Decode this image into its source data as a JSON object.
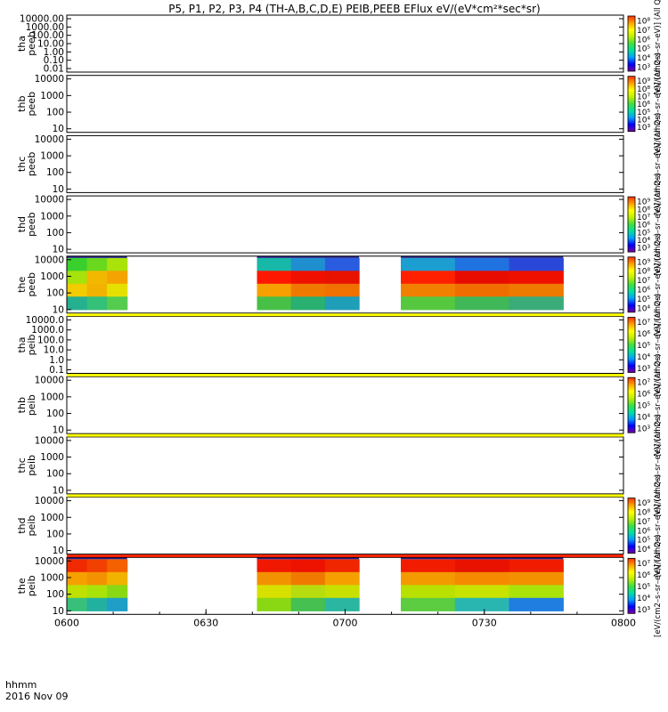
{
  "title": "P5, P1, P2, P3, P4 (TH-A,B,C,D,E) PEIB,PEEB EFlux eV/(eV*cm²*sec*sr)",
  "footer": {
    "label_line1": "hhmm",
    "label_line2": "2016 Nov 09"
  },
  "chart_data": {
    "type": "heatmap",
    "x_ticks": [
      "0600",
      "0630",
      "0700",
      "0730",
      "0800"
    ],
    "x_range": [
      "06:00",
      "08:00"
    ],
    "panels": [
      {
        "probe": "tha",
        "product": "peeb",
        "yticks": [
          "10000.00",
          "1000.00",
          "100.00",
          "10.00",
          "1.00",
          "0.10",
          "0.01"
        ],
        "cbar_ticks": [
          "10⁸",
          "10⁷",
          "10⁶",
          "10⁵",
          "10⁴",
          "10³"
        ],
        "cbar_label": "[eV/(cm2–s–sr–eV)] (All Qs)",
        "data": []
      },
      {
        "probe": "thb",
        "product": "peeb",
        "yticks": [
          "10000",
          "1000",
          "100",
          "10"
        ],
        "cbar_ticks": [
          "10⁹",
          "10⁸",
          "10⁷",
          "10⁶",
          "10⁵",
          "10⁴",
          "10³"
        ],
        "cbar_label": "[eV/(cm2–s–sr–eV)] (All Qs)",
        "data": []
      },
      {
        "probe": "thc",
        "product": "peeb",
        "yticks": [
          "10000",
          "1000",
          "100",
          "10"
        ],
        "cbar_ticks": [],
        "cbar_label": "[eV/(cm2–s–sr–eV)] (All Qs)",
        "data": []
      },
      {
        "probe": "thd",
        "product": "peeb",
        "yticks": [
          "10000",
          "1000",
          "100",
          "10"
        ],
        "cbar_ticks": [
          "10⁹",
          "10⁸",
          "10⁷",
          "10⁶",
          "10⁵",
          "10⁴",
          "10³"
        ],
        "cbar_label": "[eV/(cm2–s–sr–eV)] (All Qs)",
        "data": []
      },
      {
        "probe": "the",
        "product": "peeb",
        "yticks": [
          "10000",
          "1000",
          "100",
          "10"
        ],
        "cbar_ticks": [
          "10⁹",
          "10⁸",
          "10⁷",
          "10⁶",
          "10⁵",
          "10⁴"
        ],
        "cbar_label": "[eV/(cm2–s–sr–eV)] (All Qs)",
        "data": [
          {
            "start": "06:00",
            "end": "06:13",
            "rows": [
              [
                "#39d02e",
                "#6ad81c",
                "#a9e30a"
              ],
              [
                "#a6e20c",
                "#f2b800",
                "#f5a300"
              ],
              [
                "#f0cc00",
                "#f2b200",
                "#e6e000"
              ],
              [
                "#25b090",
                "#33c078",
                "#55cc50"
              ]
            ]
          },
          {
            "start": "06:41",
            "end": "07:03",
            "rows": [
              [
                "#18b8a8",
                "#1f8fd0",
                "#2a5ce0"
              ],
              [
                "#ff1800",
                "#f01000",
                "#e81200"
              ],
              [
                "#f6a000",
                "#f07a00",
                "#f07000"
              ],
              [
                "#48c048",
                "#2ab070",
                "#1f9eb8"
              ]
            ]
          },
          {
            "start": "07:12",
            "end": "07:47",
            "rows": [
              [
                "#1c9ed0",
                "#2072e0",
                "#2a48d8"
              ],
              [
                "#ff2000",
                "#e80c00",
                "#f01000"
              ],
              [
                "#f28000",
                "#f06e00",
                "#ee7a00"
              ],
              [
                "#56c840",
                "#40b858",
                "#3aac7a"
              ]
            ]
          }
        ]
      },
      {
        "probe": "tha",
        "product": "peib",
        "yticks": [
          "10000.0",
          "1000.0",
          "100.0",
          "10.0",
          "1.0",
          "0.1"
        ],
        "cbar_ticks": [
          "10⁷",
          "10⁶",
          "10⁵",
          "10⁴",
          "10³"
        ],
        "cbar_label": "[eV/(cm2–s–sr–eV)] (All Qs)",
        "data": []
      },
      {
        "probe": "thb",
        "product": "peib",
        "yticks": [
          "10000",
          "1000",
          "100",
          "10"
        ],
        "cbar_ticks": [
          "10⁷",
          "10⁶",
          "10⁵",
          "10⁴",
          "10³"
        ],
        "cbar_label": "[eV/(cm2–s–sr–eV)] (All Qs)",
        "data": []
      },
      {
        "probe": "thc",
        "product": "peib",
        "yticks": [
          "10000",
          "1000",
          "100",
          "10"
        ],
        "cbar_ticks": [],
        "cbar_label": "[eV/(cm2–s–sr–eV)] (All Qs)",
        "data": []
      },
      {
        "probe": "thd",
        "product": "peib",
        "yticks": [
          "10000",
          "1000",
          "100",
          "10"
        ],
        "cbar_ticks": [
          "10⁹",
          "10⁸",
          "10⁷",
          "10⁶",
          "10⁵",
          "10⁴"
        ],
        "cbar_label": "[eV/(cm2–s–sr–eV)] (All Qs)",
        "data": []
      },
      {
        "probe": "the",
        "product": "peib",
        "yticks": [
          "10000",
          "1000",
          "100",
          "10"
        ],
        "cbar_ticks": [
          "10⁷",
          "10⁶",
          "10⁵",
          "10⁴",
          "10³"
        ],
        "cbar_label": "[eV/(cm2–s–sr–eV)] (All Qs)",
        "data": [
          {
            "start": "06:00",
            "end": "06:13",
            "rows": [
              [
                "#f02a00",
                "#f24000",
                "#f56000"
              ],
              [
                "#f6a000",
                "#f39200",
                "#f2b200"
              ],
              [
                "#bfe000",
                "#a9e30a",
                "#8ad814"
              ],
              [
                "#38c07a",
                "#22b0a0",
                "#1f9ec8"
              ]
            ]
          },
          {
            "start": "06:41",
            "end": "07:03",
            "rows": [
              [
                "#f01800",
                "#ee1200",
                "#f02600"
              ],
              [
                "#f29200",
                "#f07a00",
                "#f5a000"
              ],
              [
                "#d8e000",
                "#b7dd10",
                "#c8e000"
              ],
              [
                "#8ad814",
                "#46c050",
                "#2ab6a0"
              ]
            ]
          },
          {
            "start": "07:12",
            "end": "07:47",
            "rows": [
              [
                "#f21c00",
                "#e81200",
                "#f01c00"
              ],
              [
                "#f29a00",
                "#f58a00",
                "#f29000"
              ],
              [
                "#b8e000",
                "#c8e300",
                "#a9e30a"
              ],
              [
                "#5ccc40",
                "#2ab6b0",
                "#1f7ee0"
              ]
            ]
          }
        ]
      }
    ],
    "separator_bars": [
      {
        "after_panel": 5,
        "color": "#ffff00"
      },
      {
        "after_panel": 6,
        "color": "#ffff00"
      },
      {
        "after_panel": 7,
        "color": "#ffff00"
      },
      {
        "after_panel": 8,
        "color": "#ffff00"
      },
      {
        "after_panel": 9,
        "color": "#ff2000"
      }
    ],
    "colorbar_scale": [
      "#7a00a0",
      "#0000ff",
      "#00a0ff",
      "#00e0a0",
      "#40e040",
      "#c0f000",
      "#ffff00",
      "#ffa000",
      "#ff3000"
    ]
  }
}
